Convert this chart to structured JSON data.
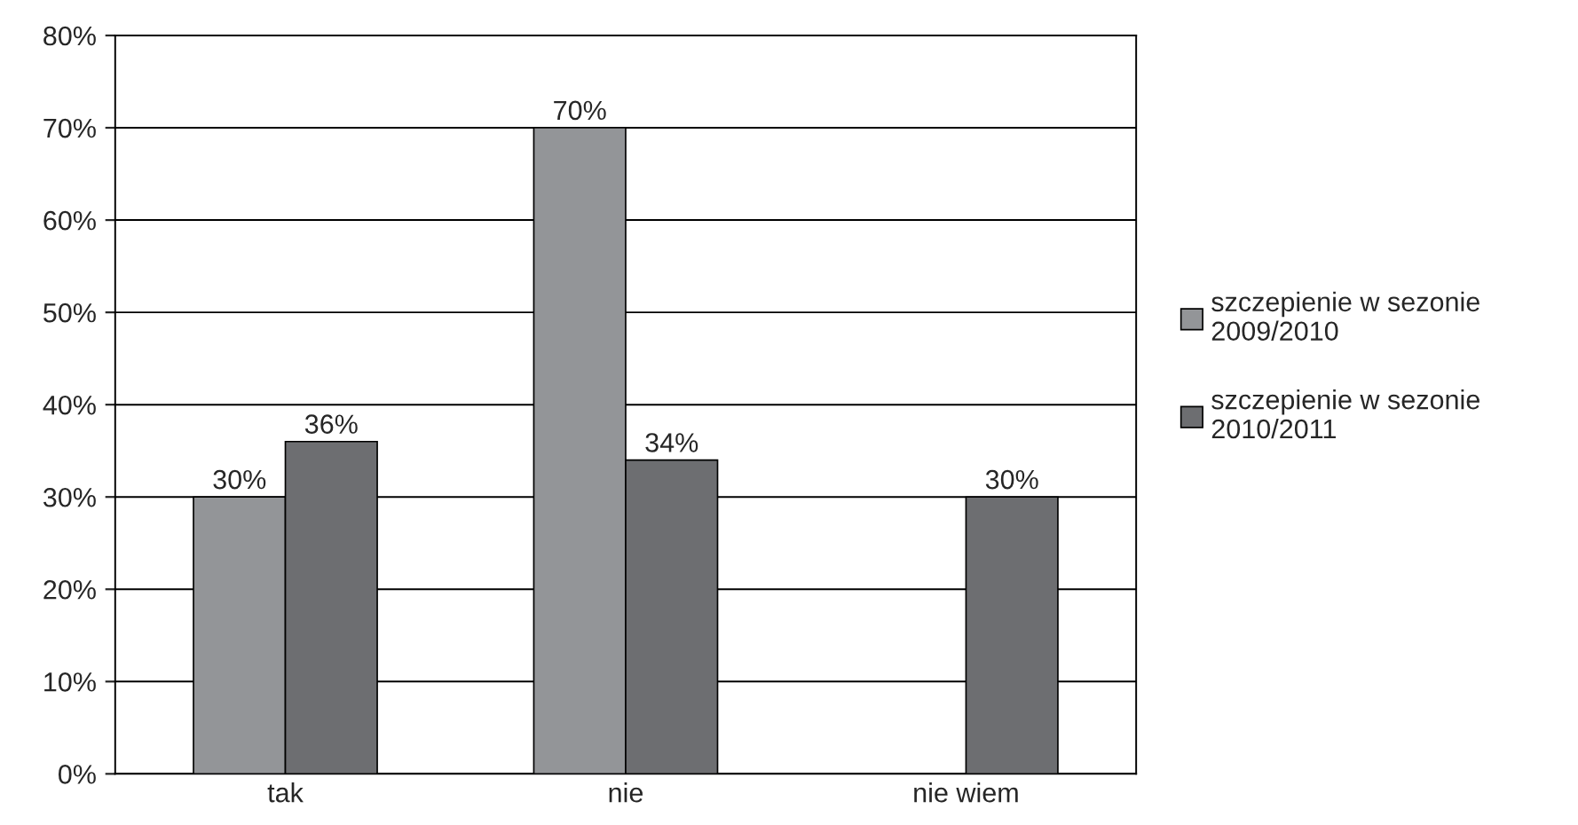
{
  "chart_data": {
    "type": "bar",
    "categories": [
      "tak",
      "nie",
      "nie wiem"
    ],
    "series": [
      {
        "name": "szczepienie w sezonie\n2009/2010",
        "color": "#939598",
        "values": [
          30,
          70,
          null
        ],
        "value_labels": [
          "30%",
          "70%",
          null
        ]
      },
      {
        "name": "szczepienie w sezonie\n2010/2011",
        "color": "#6d6e71",
        "values": [
          36,
          34,
          30
        ],
        "value_labels": [
          "36%",
          "34%",
          "30%"
        ]
      }
    ],
    "ylim": [
      0,
      80
    ],
    "yticks": [
      {
        "value": 0,
        "label": "0%"
      },
      {
        "value": 10,
        "label": "10%"
      },
      {
        "value": 20,
        "label": "20%"
      },
      {
        "value": 30,
        "label": "30%"
      },
      {
        "value": 40,
        "label": "40%"
      },
      {
        "value": 50,
        "label": "50%"
      },
      {
        "value": 60,
        "label": "60%"
      },
      {
        "value": 70,
        "label": "70%"
      },
      {
        "value": 80,
        "label": "80%"
      }
    ],
    "grid": "y",
    "legend": "right"
  }
}
